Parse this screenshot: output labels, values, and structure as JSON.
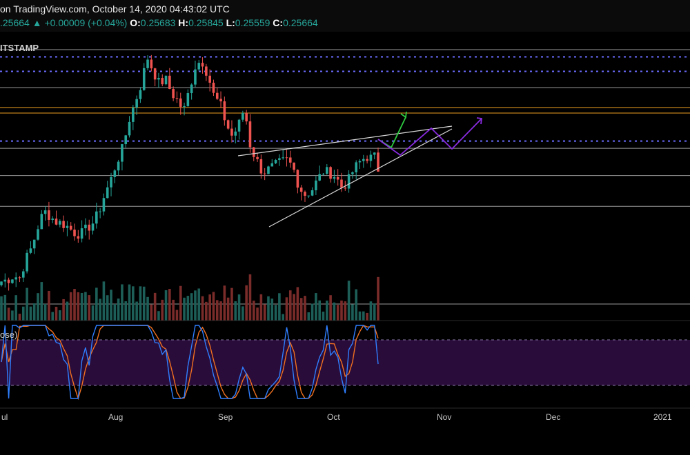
{
  "header": {
    "published": "on TradingView.com, October 14, 2020 04:43:02 UTC",
    "last_price": ".25664",
    "change_arrow": "▲",
    "change": "+0.00009 (+0.04%)",
    "open_label": "O:",
    "open": "0.25683",
    "high_label": "H:",
    "high": "0.25845",
    "low_label": "L:",
    "low": "0.25559",
    "close_label": "C:",
    "close": "0.25664"
  },
  "labels": {
    "exchange": "ITSTAMP",
    "indicator": "ose)"
  },
  "x_axis": {
    "ticks": [
      "ul",
      "Aug",
      "Sep",
      "Oct",
      "Nov",
      "Dec",
      "2021"
    ]
  },
  "colors": {
    "background": "#000000",
    "up_candle": "#26a69a",
    "down_candle": "#ef5350",
    "dotted_line": "#6b6bff",
    "horizontal_line": "#9a9a9a",
    "orange_line": "#f0a020",
    "projection_green": "#2ecc40",
    "projection_purple": "#8a2be2",
    "stoch_k": "#2f7fff",
    "stoch_d": "#f07020",
    "stoch_band": "#2a0c3a"
  },
  "chart_data": {
    "type": "candlestick",
    "symbol_exchange": "ITSTAMP",
    "ohlc_last": {
      "open": 0.25683,
      "high": 0.25845,
      "low": 0.25559,
      "close": 0.25664
    },
    "x_ticks": [
      "ul",
      "Aug",
      "Sep",
      "Oct",
      "Nov",
      "Dec",
      "2021"
    ],
    "close_series_approx": [
      0.196,
      0.197,
      0.199,
      0.198,
      0.208,
      0.215,
      0.226,
      0.235,
      0.232,
      0.229,
      0.228,
      0.226,
      0.223,
      0.222,
      0.225,
      0.228,
      0.234,
      0.244,
      0.252,
      0.262,
      0.27,
      0.285,
      0.295,
      0.305,
      0.32,
      0.312,
      0.305,
      0.308,
      0.3,
      0.296,
      0.29,
      0.303,
      0.316,
      0.318,
      0.31,
      0.298,
      0.294,
      0.283,
      0.276,
      0.282,
      0.292,
      0.27,
      0.263,
      0.256,
      0.258,
      0.26,
      0.262,
      0.263,
      0.259,
      0.248,
      0.244,
      0.246,
      0.252,
      0.257,
      0.256,
      0.254,
      0.248,
      0.251,
      0.258,
      0.262,
      0.265,
      0.264,
      0.266
    ],
    "horizontal_levels": [
      {
        "style": "solid",
        "value": 0.324
      },
      {
        "style": "dotted",
        "value": 0.32
      },
      {
        "style": "dotted",
        "value": 0.312
      },
      {
        "style": "solid",
        "value": 0.303
      },
      {
        "style": "solid-orange",
        "value": 0.292
      },
      {
        "style": "solid-orange",
        "value": 0.289
      },
      {
        "style": "dotted",
        "value": 0.2735
      },
      {
        "style": "solid",
        "value": 0.2695
      },
      {
        "style": "solid",
        "value": 0.2545
      },
      {
        "style": "solid",
        "value": 0.2375
      }
    ],
    "indicator": {
      "name": "stochastic",
      "upper_band": 80,
      "lower_band": 20
    }
  }
}
